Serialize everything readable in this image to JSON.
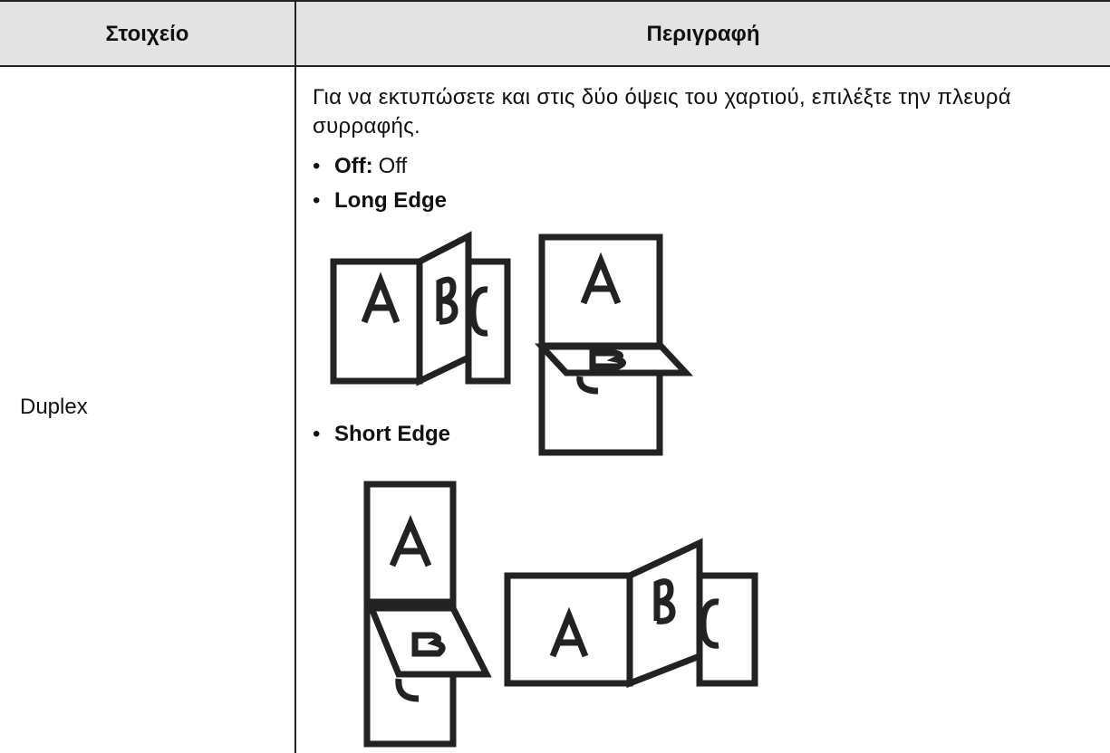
{
  "header": {
    "columns": [
      "Στοιχείο",
      "Περιγραφή"
    ]
  },
  "rows": [
    {
      "item": "Duplex",
      "description": {
        "intro": "Για να εκτυπώσετε και στις δύο όψεις του χαρτιού, επιλέξτε την πλευρά συρραφής.",
        "options": [
          {
            "label": "Off:",
            "value": "Off"
          },
          {
            "label": "Long Edge"
          },
          {
            "label": "Short Edge"
          }
        ]
      }
    }
  ]
}
